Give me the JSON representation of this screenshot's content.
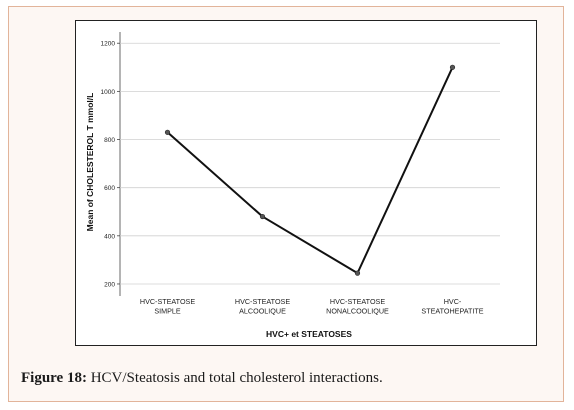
{
  "chart_data": {
    "type": "line",
    "xlabel": "HVC+ et STEATOSES",
    "ylabel": "Mean of CHOLESTEROL T mmol/L",
    "categories": [
      [
        "HVC-STEATOSE",
        "SIMPLE"
      ],
      [
        "HVC-STEATOSE",
        "ALCOOLIQUE"
      ],
      [
        "HVC-STEATOSE",
        "NONALCOOLIQUE"
      ],
      [
        "HVC-",
        "STEATOHEPATITE"
      ]
    ],
    "series": [
      {
        "values": [
          830,
          480,
          245,
          1100
        ]
      }
    ],
    "yticks": [
      "200",
      "400",
      "600",
      "800",
      "1000",
      "1200"
    ],
    "ylim": [
      150,
      1230
    ],
    "grid": true,
    "line_color": "#111111"
  },
  "caption": {
    "label": "Figure 18:",
    "text": " HCV/Steatosis and total cholesterol interactions."
  }
}
